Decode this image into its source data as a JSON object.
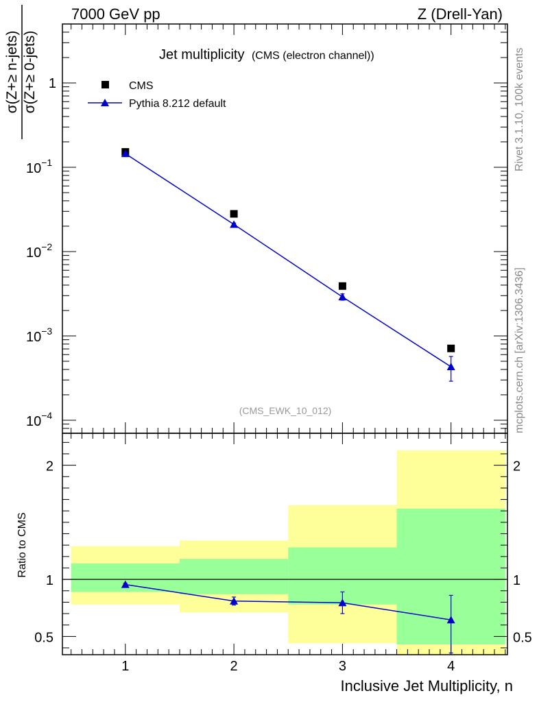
{
  "header": {
    "left": "7000 GeV pp",
    "right": "Z (Drell-Yan)"
  },
  "chart_data": [
    {
      "type": "scatter",
      "title": "Jet multiplicity",
      "subtitle": "(CMS (electron channel))",
      "ylabel_num": "σ(Z+≥ n-jets)",
      "ylabel_den": "σ(Z+≥ 0-jets)",
      "yscale": "log",
      "ylim": [
        7e-05,
        5
      ],
      "xlim": [
        0.42,
        4.52
      ],
      "y_ticks": [
        {
          "v": 1,
          "base": "1",
          "exp": ""
        },
        {
          "v": 0.1,
          "base": "10",
          "exp": "−1"
        },
        {
          "v": 0.01,
          "base": "10",
          "exp": "−2"
        },
        {
          "v": 0.001,
          "base": "10",
          "exp": "−3"
        },
        {
          "v": 0.0001,
          "base": "10",
          "exp": "−4"
        }
      ],
      "legend": {
        "position": "top-left",
        "entries": [
          "CMS",
          "Pythia 8.212 default"
        ]
      },
      "watermark": "(CMS_EWK_10_012)",
      "series": [
        {
          "name": "CMS",
          "marker": "square",
          "color": "#000000",
          "x": [
            1,
            2,
            3,
            4
          ],
          "y": [
            0.152,
            0.028,
            0.0039,
            0.00071
          ]
        },
        {
          "name": "Pythia 8.212 default",
          "marker": "triangle",
          "color": "#0000cc",
          "x": [
            1,
            2,
            3,
            4
          ],
          "y": [
            0.145,
            0.021,
            0.0029,
            0.00043
          ],
          "err_low": [
            0.003,
            0.0008,
            0.00025,
            0.00014
          ],
          "err_high": [
            0.003,
            0.0008,
            0.00025,
            0.00014
          ]
        }
      ]
    },
    {
      "type": "area",
      "ylabel": "Ratio to CMS",
      "xlabel": "Inclusive Jet Multiplicity, n",
      "ylim": [
        0.34,
        2.28
      ],
      "xlim": [
        0.42,
        4.52
      ],
      "x_ticks": [
        "1",
        "2",
        "3",
        "4"
      ],
      "y_ticks": [
        "0.5",
        "1",
        "2"
      ],
      "reference_line": 1,
      "bins": [
        [
          0.5,
          1.5
        ],
        [
          1.5,
          2.5
        ],
        [
          2.5,
          3.5
        ],
        [
          3.5,
          4.5
        ]
      ],
      "band_1sigma": {
        "color": "#99ff99",
        "low": [
          0.89,
          0.87,
          0.78,
          0.43
        ],
        "high": [
          1.14,
          1.18,
          1.28,
          1.62
        ]
      },
      "band_2sigma": {
        "color": "#ffff99",
        "low": [
          0.78,
          0.71,
          0.44,
          0.34
        ],
        "high": [
          1.29,
          1.34,
          1.65,
          2.13
        ]
      },
      "series": [
        {
          "name": "Pythia 8.212 default",
          "color": "#0000cc",
          "x": [
            1,
            2,
            3,
            4
          ],
          "y": [
            0.955,
            0.81,
            0.795,
            0.645
          ],
          "err_low": [
            0.012,
            0.035,
            0.095,
            0.29
          ],
          "err_high": [
            0.012,
            0.035,
            0.095,
            0.215
          ]
        }
      ]
    }
  ],
  "side_text": {
    "rivet": "Rivet 3.1.10,  100k events",
    "source": "mcplots.cern.ch [arXiv:1306.3436]"
  }
}
